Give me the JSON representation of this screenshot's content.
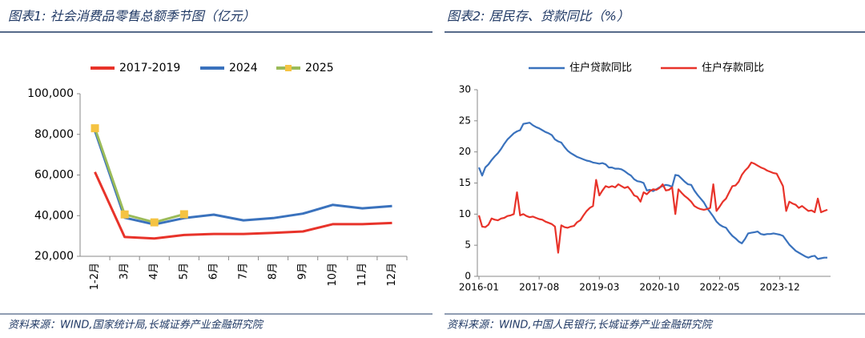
{
  "chart_data": [
    {
      "type": "line",
      "title": "图表1: 社会消费品零售总额季节图（亿元）",
      "source": "资料来源：WIND,国家统计局,长城证券产业金融研究院",
      "categories": [
        "1-2月",
        "3月",
        "4月",
        "5月",
        "6月",
        "7月",
        "8月",
        "9月",
        "10月",
        "11月",
        "12月"
      ],
      "series": [
        {
          "name": "2017-2019",
          "color": "#e8332a",
          "values": [
            61500,
            29500,
            28800,
            30500,
            31000,
            31000,
            31500,
            32200,
            35800,
            35800,
            36400
          ]
        },
        {
          "name": "2024",
          "color": "#3a72bd",
          "values": [
            81700,
            39000,
            35700,
            38800,
            40500,
            37700,
            38800,
            41000,
            45300,
            43600,
            44700
          ]
        },
        {
          "name": "2025",
          "color": "#9bbb59",
          "marker_color": "#f5c342",
          "values": [
            83000,
            40600,
            36700,
            40700,
            null,
            null,
            null,
            null,
            null,
            null,
            null
          ]
        }
      ],
      "ylim": [
        20000,
        100000
      ],
      "yticks": [
        {
          "value": 20000,
          "label": "20,000"
        },
        {
          "value": 40000,
          "label": "40,000"
        },
        {
          "value": 60000,
          "label": "60,000"
        },
        {
          "value": 80000,
          "label": "80,000"
        },
        {
          "value": 100000,
          "label": "100,000"
        }
      ],
      "grid": false,
      "legend": "top"
    },
    {
      "type": "line",
      "title": "图表2: 居民存、贷款同比（%）",
      "source": "资料来源：WIND,中国人民银行,长城证券产业金融研究院",
      "categories": [
        "2016-01",
        null,
        null,
        null,
        null,
        null,
        null,
        null,
        null,
        null,
        null,
        null,
        null,
        null,
        null,
        null,
        null,
        null,
        null,
        "2017-08",
        null,
        null,
        null,
        null,
        null,
        null,
        null,
        null,
        null,
        null,
        null,
        null,
        null,
        null,
        null,
        null,
        null,
        null,
        "2019-03",
        null,
        null,
        null,
        null,
        null,
        null,
        null,
        null,
        null,
        null,
        null,
        null,
        null,
        null,
        null,
        null,
        null,
        null,
        "2020-10",
        null,
        null,
        null,
        null,
        null,
        null,
        null,
        null,
        null,
        null,
        null,
        null,
        null,
        null,
        null,
        null,
        null,
        null,
        "2022-05",
        null,
        null,
        null,
        null,
        null,
        null,
        null,
        null,
        null,
        null,
        null,
        null,
        null,
        null,
        null,
        null,
        null,
        null,
        "2023-12",
        null,
        null,
        null,
        null,
        null,
        null,
        null,
        null,
        null,
        null,
        null,
        null,
        null,
        null,
        null
      ],
      "series": [
        {
          "name": "住户贷款同比",
          "color": "#3a72bd",
          "values": [
            17.5,
            16.2,
            17.5,
            18,
            18.7,
            19.3,
            19.8,
            20.5,
            21.3,
            22,
            22.5,
            23,
            23.3,
            23.5,
            24.5,
            24.6,
            24.7,
            24.3,
            24,
            23.8,
            23.5,
            23.2,
            23,
            22.7,
            22,
            21.7,
            21.5,
            20.8,
            20.2,
            19.8,
            19.5,
            19.2,
            19,
            18.8,
            18.6,
            18.5,
            18.3,
            18.2,
            18.1,
            18.2,
            18,
            17.5,
            17.5,
            17.3,
            17.3,
            17.2,
            16.9,
            16.5,
            16.2,
            15.6,
            15.3,
            15.2,
            15,
            13.8,
            13.9,
            13.7,
            14,
            14.3,
            14.5,
            14.7,
            14.6,
            14.4,
            16.3,
            16.2,
            15.7,
            15.2,
            14.8,
            14.7,
            13.8,
            13.1,
            12.5,
            11.9,
            11,
            10.3,
            9.6,
            8.8,
            8.3,
            8,
            7.8,
            7.1,
            6.5,
            6.1,
            5.6,
            5.3,
            6,
            6.9,
            7,
            7.1,
            7.2,
            6.8,
            6.7,
            6.8,
            6.8,
            6.9,
            6.8,
            6.7,
            6.5,
            5.8,
            5.1,
            4.6,
            4.1,
            3.8,
            3.5,
            3.2,
            3,
            3.2,
            3.3,
            2.8,
            2.9,
            3,
            3
          ]
        },
        {
          "name": "住户存款同比",
          "color": "#e8332a",
          "values": [
            9.8,
            8,
            7.9,
            8.3,
            9.3,
            9.1,
            9,
            9.3,
            9.4,
            9.7,
            9.8,
            10,
            13.5,
            9.8,
            10,
            9.7,
            9.5,
            9.6,
            9.4,
            9.2,
            9.1,
            8.8,
            8.6,
            8.4,
            8,
            3.8,
            8.2,
            7.9,
            7.8,
            8,
            8.1,
            8.7,
            9,
            9.8,
            10.5,
            11,
            11.3,
            15.5,
            13,
            13.8,
            14.5,
            14.3,
            14.5,
            14.3,
            14.8,
            14.5,
            14.2,
            14.4,
            13.8,
            13,
            12.8,
            12,
            13.5,
            13.2,
            13.7,
            14,
            13.9,
            14.2,
            14.8,
            13.8,
            13.9,
            14.3,
            10,
            14,
            13.4,
            12.9,
            12.5,
            12,
            11.3,
            11,
            10.8,
            10.7,
            10.8,
            11,
            14.8,
            10.5,
            11.2,
            12,
            12.5,
            13.5,
            14.5,
            14.6,
            15.2,
            16.3,
            17,
            17.5,
            18.3,
            18.1,
            17.8,
            17.5,
            17.3,
            17,
            16.8,
            16.6,
            16.5,
            15.5,
            14.5,
            10.5,
            12,
            11.7,
            11.5,
            11,
            11.3,
            10.9,
            10.5,
            10.6,
            10.3,
            12.5,
            10.3,
            10.5,
            10.7
          ]
        }
      ],
      "ylim": [
        0,
        30
      ],
      "yticks": [
        0,
        5,
        10,
        15,
        20,
        25,
        30
      ],
      "grid": false,
      "legend": "top"
    }
  ]
}
